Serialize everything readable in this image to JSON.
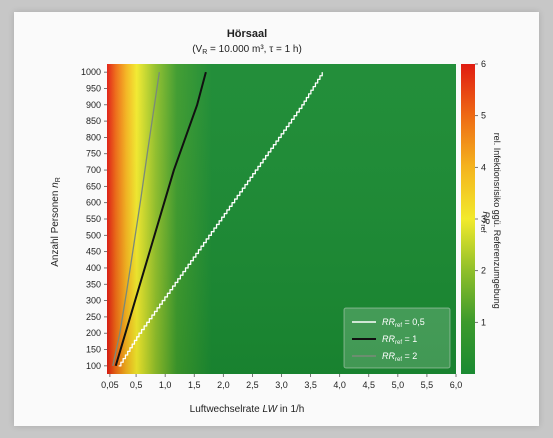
{
  "chart_data": {
    "type": "heatmap",
    "title": "Hörsaal",
    "subtitle": {
      "pre": "(V",
      "sub": "R",
      "mid": " = 10.000 m³, τ = 1 h)"
    },
    "xlabel": {
      "pre": "Luftwechselrate ",
      "ital": "LW",
      "post": " in 1/h"
    },
    "ylabel": {
      "pre": "Anzahl Personen ",
      "ital": "n",
      "sub": "R"
    },
    "xlim": [
      0,
      6.0
    ],
    "ylim": [
      75,
      1025
    ],
    "x_ticks": [
      0.05,
      0.5,
      1.0,
      1.5,
      2.0,
      2.5,
      3.0,
      3.5,
      4.0,
      4.5,
      5.0,
      5.5,
      6.0
    ],
    "x_tick_labels": [
      "0,05",
      "0,5",
      "1,0",
      "1,5",
      "2,0",
      "2,5",
      "3,0",
      "3,5",
      "4,0",
      "4,5",
      "5,0",
      "5,5",
      "6,0"
    ],
    "y_ticks": [
      100,
      150,
      200,
      250,
      300,
      350,
      400,
      450,
      500,
      550,
      600,
      650,
      700,
      750,
      800,
      850,
      900,
      950,
      1000
    ],
    "y_tick_labels": [
      "100",
      "150",
      "200",
      "250",
      "300",
      "350",
      "400",
      "450",
      "500",
      "550",
      "600",
      "650",
      "700",
      "750",
      "800",
      "850",
      "900",
      "950",
      "1000"
    ],
    "colorbar": {
      "range": [
        0,
        6
      ],
      "ticks": [
        1,
        2,
        3,
        4,
        5,
        6
      ],
      "tick_labels": [
        "1",
        "2",
        "3",
        "4",
        "5",
        "6"
      ],
      "label_line1": "rel. Infektionsrisiko ggü. Referenzumgebung",
      "label_line2_ital": "RR",
      "label_line2_sub": "ref",
      "colors": [
        "#1a8a32",
        "#3c9a2c",
        "#8fbf2a",
        "#f2ea2c",
        "#f4b41e",
        "#ee6a14",
        "#e01c12"
      ]
    },
    "series": [
      {
        "name": {
          "ital": "RR",
          "sub": "ref",
          "post": " = 0,5"
        },
        "color": "#ffffff",
        "style": "stepped",
        "x": [
          0.2,
          0.55,
          0.95,
          1.35,
          1.75,
          2.15,
          2.55,
          2.95,
          3.35,
          3.7
        ],
        "y": [
          100,
          200,
          300,
          400,
          500,
          600,
          700,
          800,
          900,
          1000
        ]
      },
      {
        "name": {
          "ital": "RR",
          "sub": "ref",
          "post": " = 1"
        },
        "color": "#111111",
        "style": "smooth",
        "x": [
          0.15,
          0.35,
          0.55,
          0.75,
          0.95,
          1.15,
          1.35,
          1.55,
          1.7
        ],
        "y": [
          100,
          220,
          340,
          460,
          580,
          700,
          800,
          900,
          1000
        ]
      },
      {
        "name": {
          "ital": "RR",
          "sub": "ref",
          "post": " = 2"
        },
        "color": "#7a8a7a",
        "style": "smooth",
        "x": [
          0.1,
          0.22,
          0.34,
          0.46,
          0.58,
          0.7,
          0.8,
          0.9
        ],
        "y": [
          100,
          200,
          330,
          470,
          610,
          760,
          880,
          1000
        ]
      }
    ],
    "legend_position": "bottom-right"
  }
}
